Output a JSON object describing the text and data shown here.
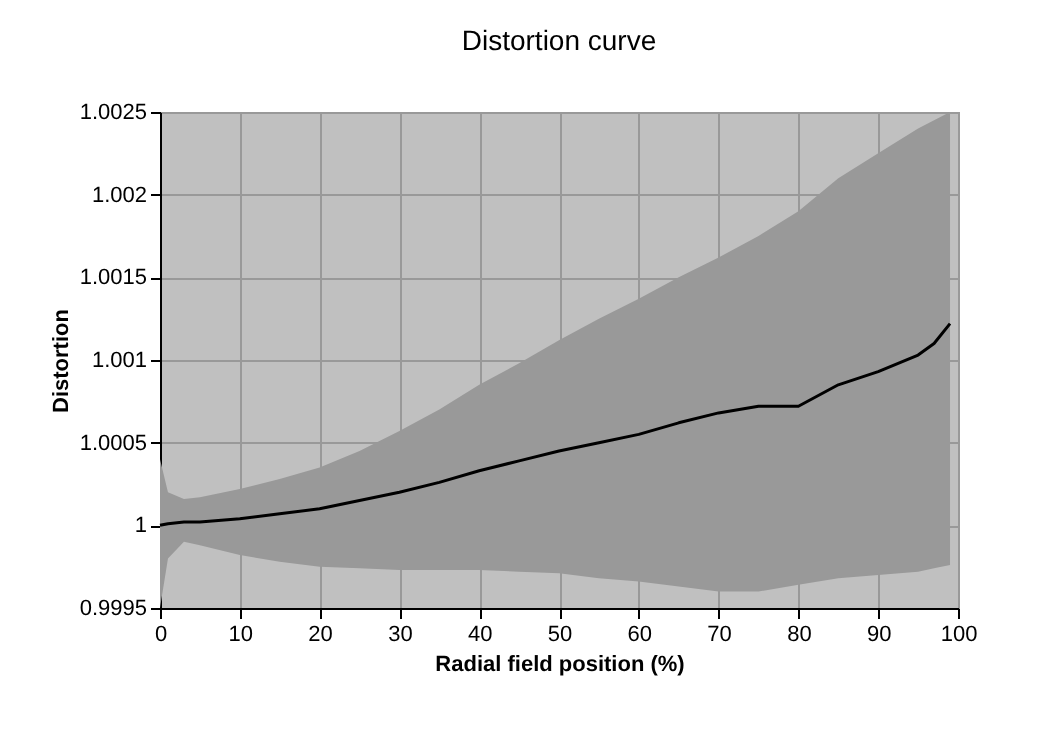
{
  "chart_data": {
    "type": "line",
    "title": "Distortion curve",
    "xlabel": "Radial field position (%)",
    "ylabel": "Distortion",
    "x": [
      0,
      1,
      3,
      5,
      10,
      15,
      20,
      25,
      30,
      35,
      40,
      45,
      50,
      55,
      60,
      65,
      70,
      75,
      80,
      85,
      90,
      95,
      97,
      99
    ],
    "series": [
      {
        "color": "#000000",
        "values": [
          1.0,
          1.00001,
          1.00002,
          1.00002,
          1.00004,
          1.00007,
          1.0001,
          1.00015,
          1.0002,
          1.00026,
          1.00033,
          1.00039,
          1.00045,
          1.0005,
          1.00055,
          1.00062,
          1.00068,
          1.00072,
          1.00072,
          1.00085,
          1.00093,
          1.00103,
          1.0011,
          1.00122
        ],
        "lower": [
          0.9995,
          0.9998,
          0.9999,
          0.99988,
          0.99982,
          0.99978,
          0.99975,
          0.99974,
          0.99973,
          0.99973,
          0.99973,
          0.99972,
          0.99971,
          0.99968,
          0.99966,
          0.99963,
          0.9996,
          0.9996,
          0.99964,
          0.99968,
          0.9997,
          0.99972,
          0.99974,
          0.99976
        ],
        "upper": [
          1.0004,
          1.0002,
          1.00016,
          1.00017,
          1.00022,
          1.00028,
          1.00035,
          1.00045,
          1.00057,
          1.0007,
          1.00085,
          1.00098,
          1.00112,
          1.00125,
          1.00137,
          1.0015,
          1.00162,
          1.00175,
          1.0019,
          1.0021,
          1.00225,
          1.0024,
          1.00245,
          1.0025
        ]
      }
    ],
    "xlim": [
      0,
      100
    ],
    "xticks": [
      0,
      10,
      20,
      30,
      40,
      50,
      60,
      70,
      80,
      90,
      100
    ],
    "ylim": [
      0.9995,
      1.0025
    ],
    "yticks": [
      0.9995,
      1,
      1.0005,
      1.001,
      1.0015,
      1.002,
      1.0025
    ],
    "grid": true,
    "marker": "none",
    "line_style": "solid"
  }
}
